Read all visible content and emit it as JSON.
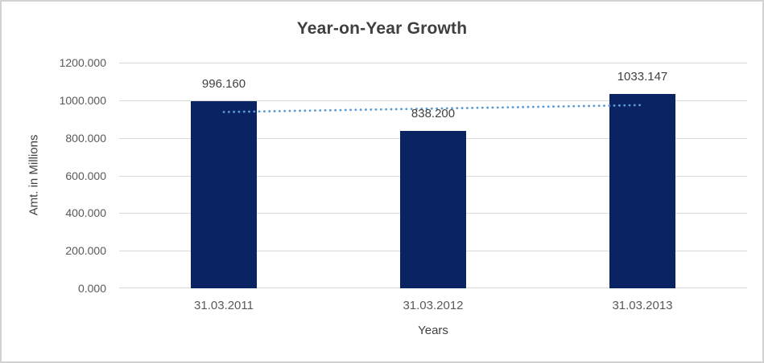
{
  "chart_data": {
    "type": "bar",
    "title": "Year-on-Year Growth",
    "categories": [
      "31.03.2011",
      "31.03.2012",
      "31.03.2013"
    ],
    "values": [
      996.16,
      838.2,
      1033.147
    ],
    "data_labels": [
      "996.160",
      "838.200",
      "1033.147"
    ],
    "xlabel": "Years",
    "ylabel": "Amt. in Millions",
    "ylim": [
      0,
      1200
    ],
    "ytick_labels": [
      "0.000",
      "200.000",
      "400.000",
      "600.000",
      "800.000",
      "1000.000",
      "1200.000"
    ],
    "grid": true,
    "legend": "none",
    "trendline": {
      "type": "linear",
      "style": "dotted"
    },
    "colors": {
      "bar": "#0a2463",
      "trendline": "#5b9bd5",
      "gridline": "#d9d9d9",
      "title_text": "#3f3f3f",
      "tick_text": "#595959",
      "label_text": "#404040",
      "border": "#d2d2d2",
      "background": "#ffffff"
    }
  }
}
